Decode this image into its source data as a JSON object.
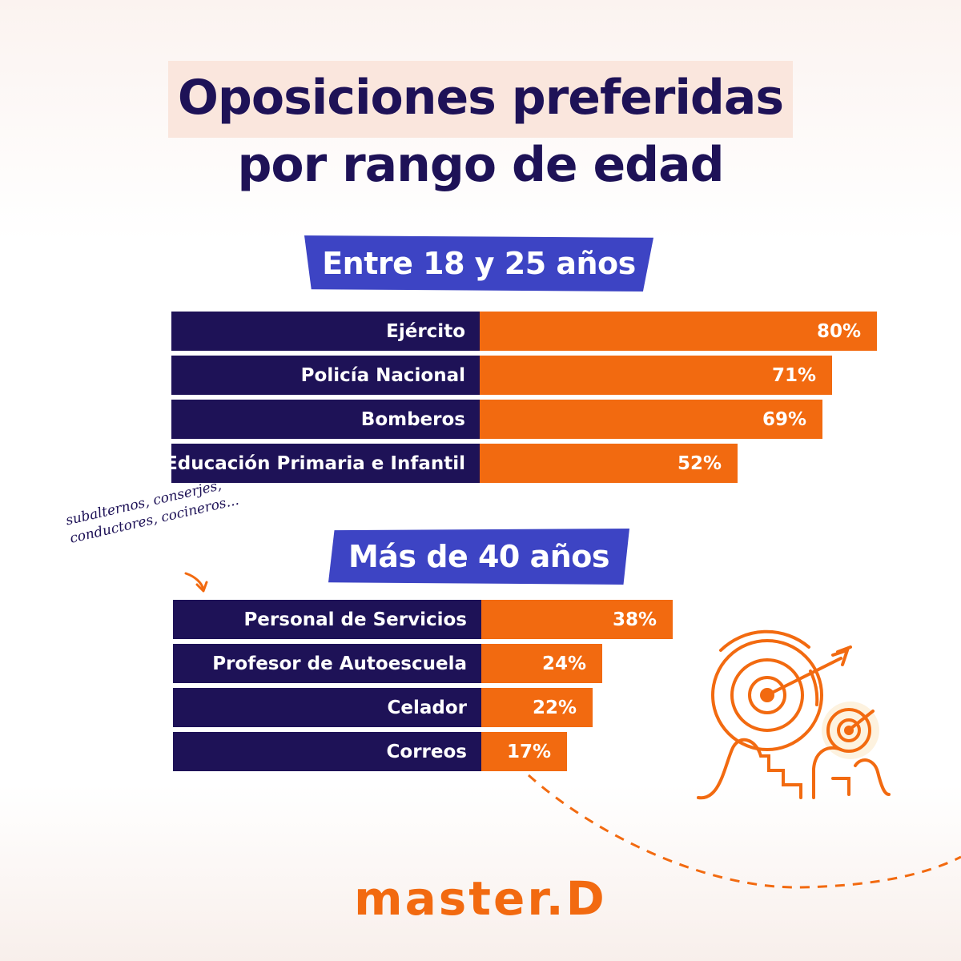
{
  "title": {
    "line1": "Oposiciones preferidas",
    "line2": "por rango de edad"
  },
  "note": {
    "line1": "subalternos, conserjes,",
    "line2": "conductores, cocineros..."
  },
  "logo": "master.D",
  "colors": {
    "navy": "#1e1257",
    "orange": "#f26a10",
    "label_blue": "#3d44c4",
    "highlight": "#fae6dd"
  },
  "icons": [
    "arrow-icon",
    "target-icon"
  ],
  "chart_data": [
    {
      "type": "bar",
      "orientation": "horizontal",
      "title": "Entre 18 y 25 años",
      "categories": [
        "Ejército",
        "Policía Nacional",
        "Bomberos",
        "Educación Primaria e Infantil"
      ],
      "values": [
        80,
        71,
        69,
        52
      ],
      "value_labels": [
        "80%",
        "71%",
        "69%",
        "52%"
      ],
      "unit": "%"
    },
    {
      "type": "bar",
      "orientation": "horizontal",
      "title": "Más de 40 años",
      "categories": [
        "Personal de Servicios",
        "Profesor de Autoescuela",
        "Celador",
        "Correos"
      ],
      "values": [
        38,
        24,
        22,
        17
      ],
      "value_labels": [
        "38%",
        "24%",
        "22%",
        "17%"
      ],
      "unit": "%"
    }
  ]
}
